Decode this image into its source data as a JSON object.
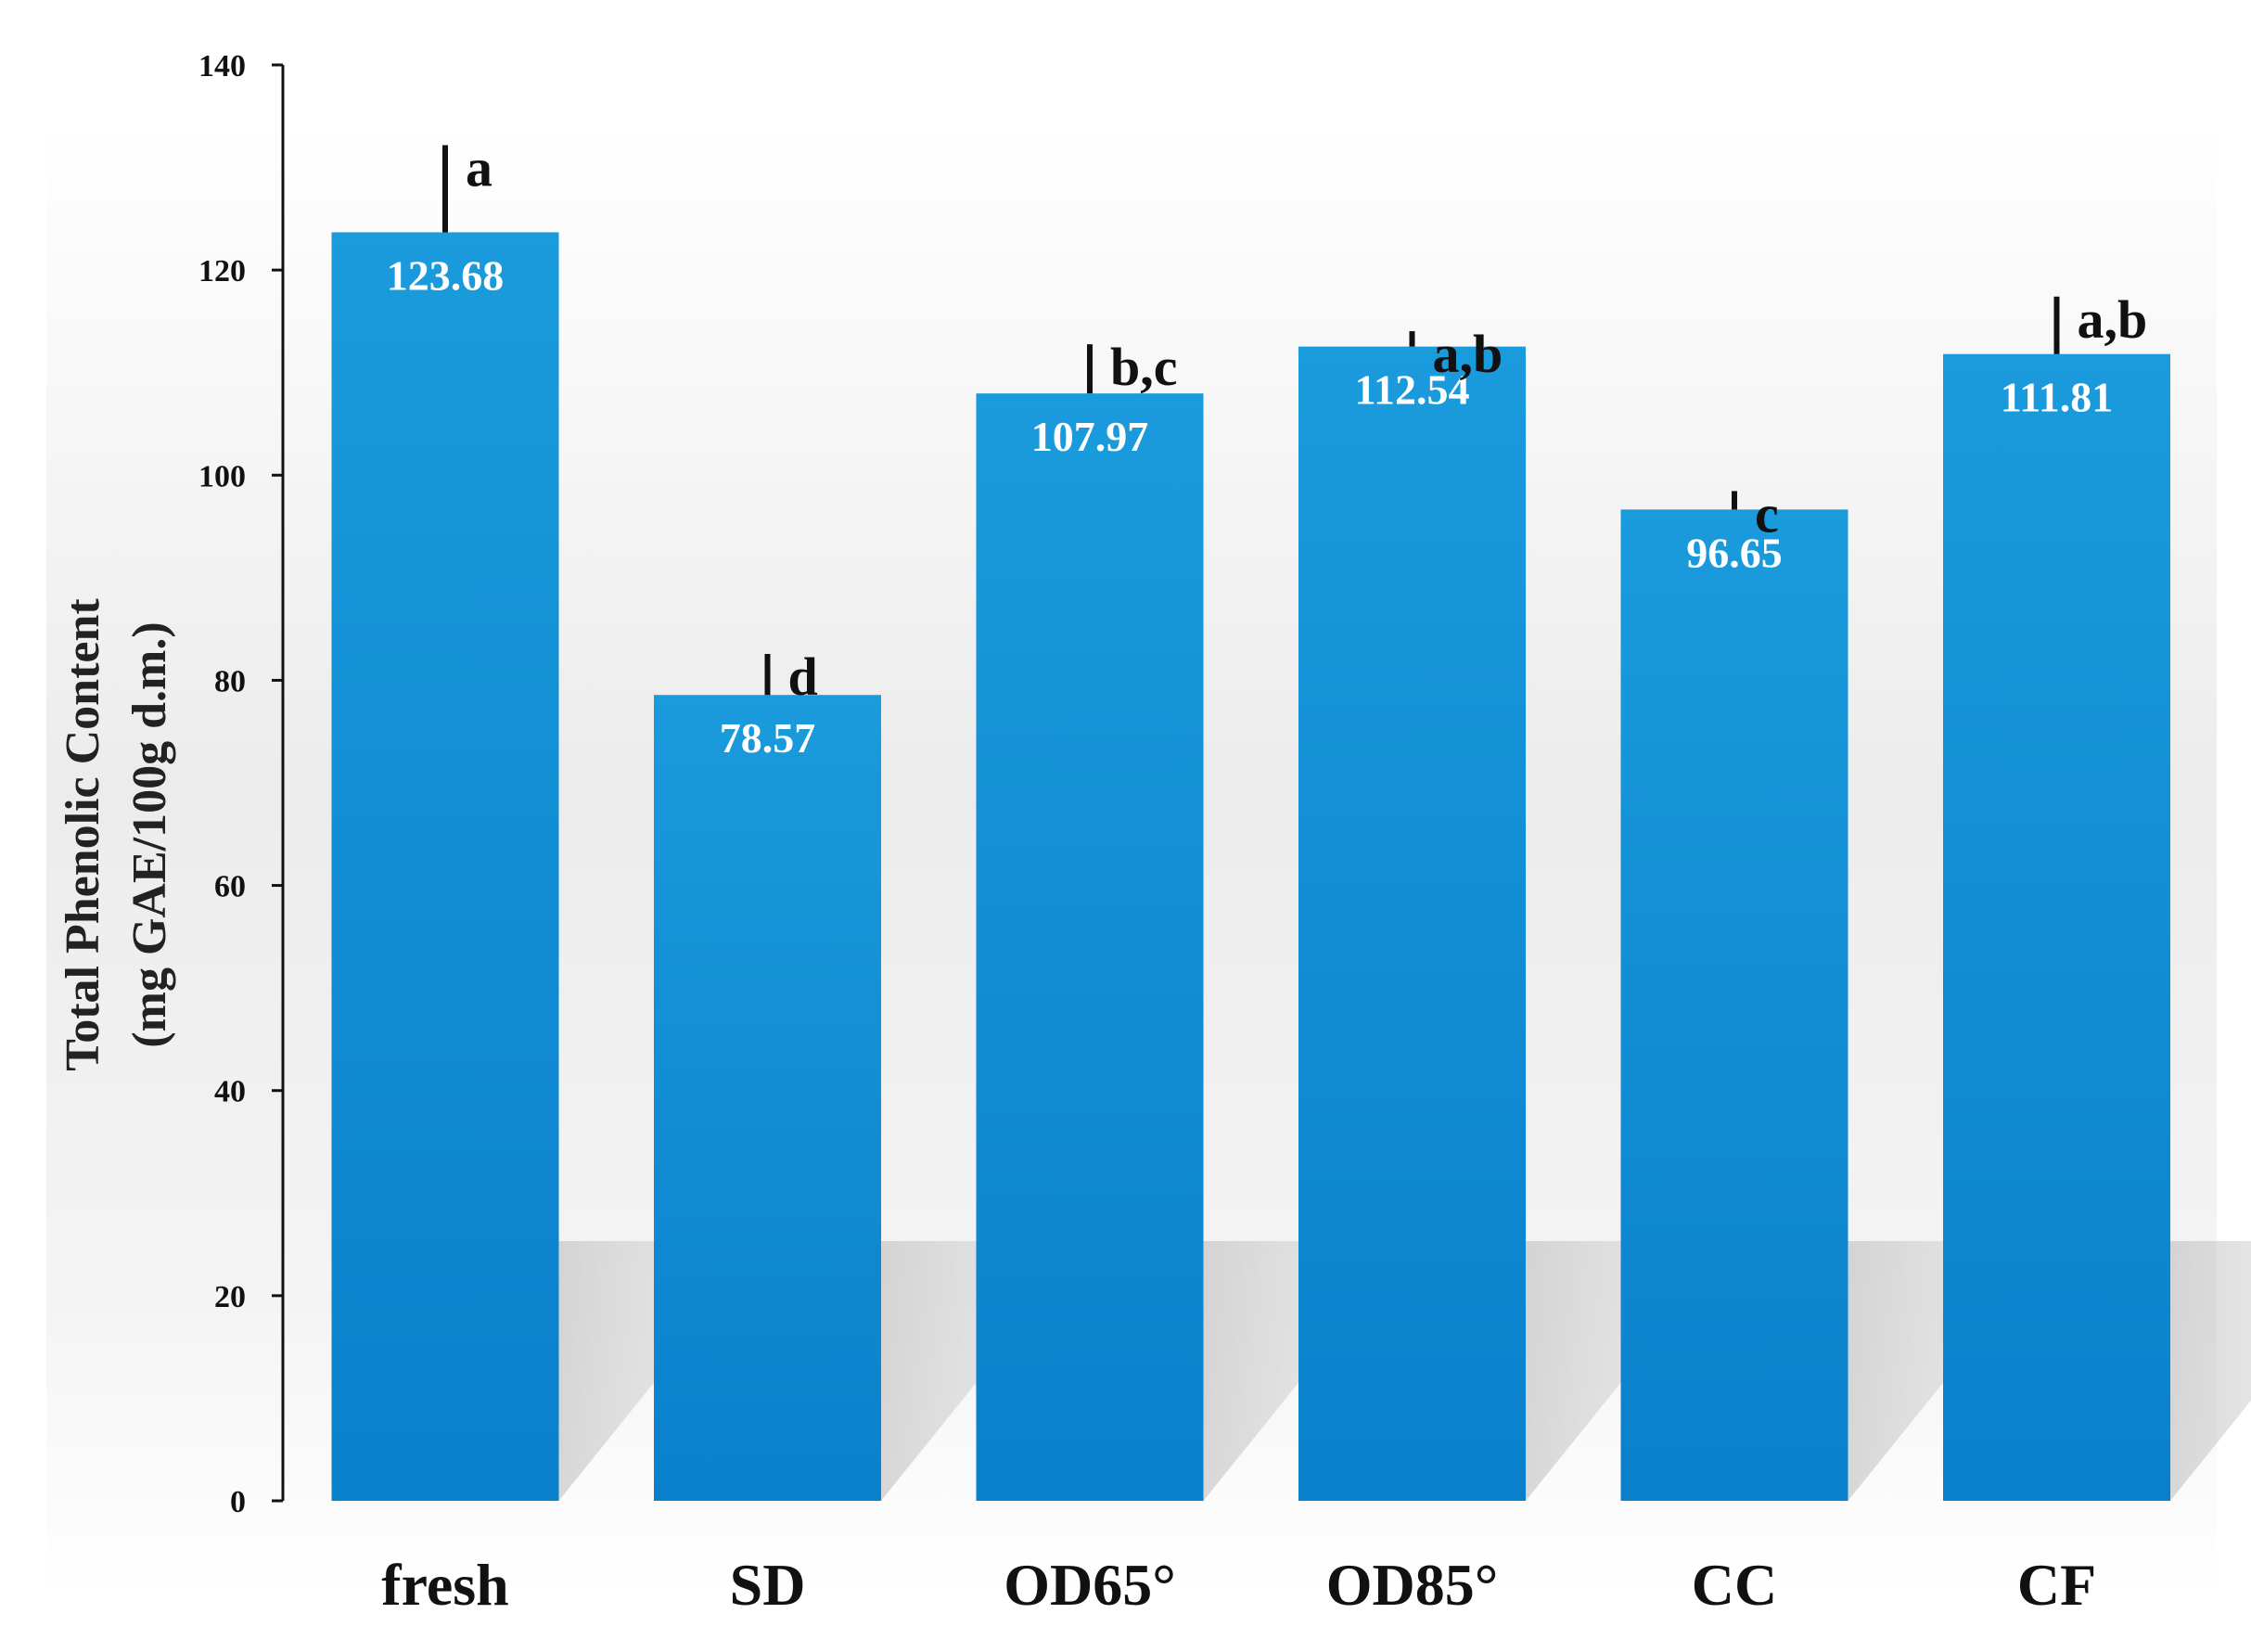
{
  "chart_data": {
    "type": "bar",
    "categories": [
      "fresh",
      "SD",
      "OD65°",
      "OD85°",
      "CC",
      "CF"
    ],
    "values": [
      123.68,
      78.57,
      107.97,
      112.54,
      96.65,
      111.81
    ],
    "value_labels": [
      "123.68",
      "78.57",
      "107.97",
      "112.54",
      "96.65",
      "111.81"
    ],
    "error_bars": [
      8.5,
      4.0,
      4.8,
      1.5,
      1.8,
      5.6
    ],
    "significance_letters": [
      "a",
      "d",
      "b,c",
      "a,b",
      "c",
      "a,b"
    ],
    "ylabel_lines": [
      "Total Phenolic Content",
      "(mg GAE/100g d.m.)"
    ],
    "ylim": [
      0,
      140
    ],
    "yticks": [
      0,
      20,
      40,
      60,
      80,
      100,
      120,
      140
    ],
    "grid": false,
    "colors": {
      "bar_top": "#1a9bdc",
      "bar_bottom": "#0a80cc",
      "background_top": "#ffffff",
      "background_mid": "#e9e9e9",
      "shadow": "#b8b8b8",
      "axis": "#111111"
    }
  }
}
